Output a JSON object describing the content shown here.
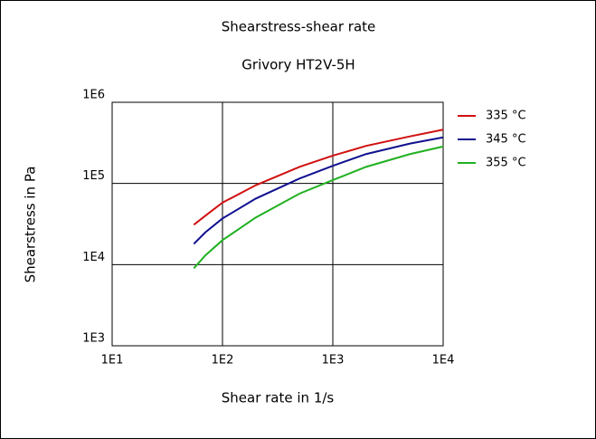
{
  "chart_data": {
    "type": "line",
    "title": "Shearstress-shear rate",
    "subtitle": "Grivory HT2V-5H",
    "x_label": "Shear rate in 1/s",
    "y_label": "Shearstress in Pa",
    "xlog": true,
    "ylog": true,
    "grid": true,
    "legend": "right",
    "x": [
      55,
      70,
      100,
      200,
      500,
      1000,
      2000,
      5000,
      10000
    ],
    "series": [
      {
        "name": "335 °C",
        "color": "#d01010",
        "values": [
          31000,
          40000,
          58000,
          95000,
          160000,
          220000,
          290000,
          380000,
          460000
        ]
      },
      {
        "name": "345 °C",
        "color": "#101090",
        "values": [
          18000,
          25000,
          37000,
          65000,
          115000,
          165000,
          230000,
          310000,
          370000
        ]
      },
      {
        "name": "355 °C",
        "color": "#20b020",
        "values": [
          9000,
          13000,
          20000,
          38000,
          75000,
          110000,
          160000,
          230000,
          285000
        ]
      }
    ],
    "xlim": [
      10,
      10000
    ],
    "ylim": [
      1000,
      1000000
    ],
    "xticks": [
      {
        "value": 10,
        "label": "1E1"
      },
      {
        "value": 100,
        "label": "1E2"
      },
      {
        "value": 1000,
        "label": "1E3"
      },
      {
        "value": 10000,
        "label": "1E4"
      }
    ],
    "yticks": [
      {
        "value": 1000,
        "label": "1E3"
      },
      {
        "value": 10000,
        "label": "1E4"
      },
      {
        "value": 100000,
        "label": "1E5"
      },
      {
        "value": 1000000,
        "label": "1E6"
      }
    ]
  }
}
